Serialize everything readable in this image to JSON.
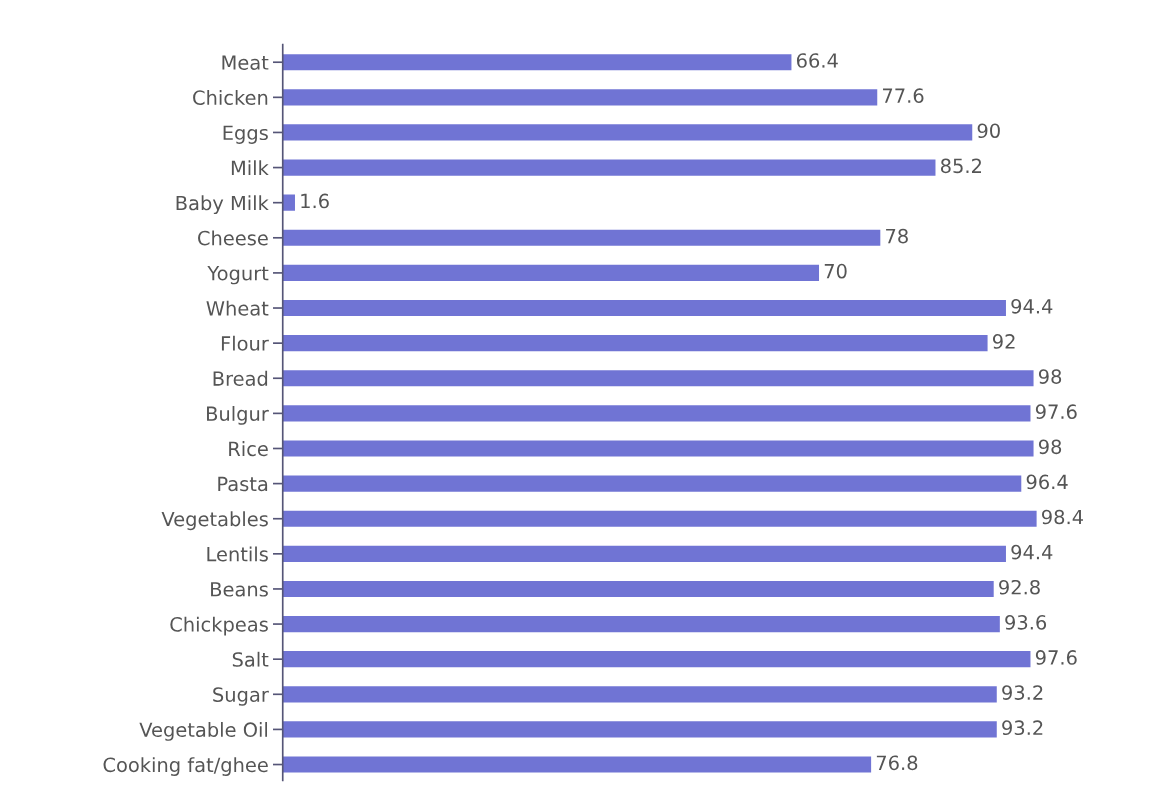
{
  "chart_data": {
    "type": "bar",
    "orientation": "horizontal",
    "color": "#7074d4",
    "data_labels": true,
    "tick_labels": "y",
    "categories": [
      "Meat",
      "Chicken",
      "Eggs",
      "Milk",
      "Baby Milk",
      "Cheese",
      "Yogurt",
      "Wheat",
      "Flour",
      "Bread",
      "Bulgur",
      "Rice",
      "Pasta",
      "Vegetables",
      "Lentils",
      "Beans",
      "Chickpeas",
      "Salt",
      "Sugar",
      "Vegetable Oil",
      "Cooking fat/ghee"
    ],
    "values": [
      66.4,
      77.6,
      90,
      85.2,
      1.6,
      78,
      70,
      94.4,
      92,
      98,
      97.6,
      98,
      96.4,
      98.4,
      94.4,
      92.8,
      93.6,
      97.6,
      93.2,
      93.2,
      76.8
    ]
  }
}
